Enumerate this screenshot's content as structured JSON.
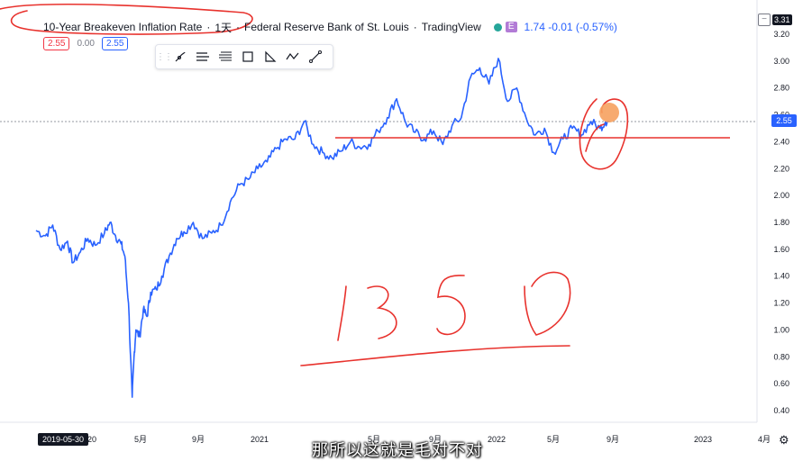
{
  "legend": {
    "symbol_title": "10-Year Breakeven Inflation Rate",
    "interval": "1天",
    "source": "Federal Reserve Bank of St. Louis",
    "provider": "TradingView",
    "e_badge": "E",
    "value_change": "1.74 -0.01 (-0.57%)"
  },
  "ohlc_badges": [
    "2.55",
    "0.00",
    "2.55"
  ],
  "top_right_value": "3.31",
  "current_price_label": "2.55",
  "crosshair_date": "2019-05-30",
  "subtitle": "那所以这就是毛对不对",
  "toolbar_tools": [
    "brush-icon",
    "channel-icon",
    "fib-icon",
    "rectangle-icon",
    "triangle-icon",
    "path-icon",
    "trendline-icon"
  ],
  "handwritten_annotation": "1350",
  "chart_data": {
    "type": "line",
    "title": "10-Year Breakeven Inflation Rate",
    "y_tick_labels": [
      "0.40",
      "0.60",
      "0.80",
      "1.00",
      "1.20",
      "1.40",
      "1.60",
      "1.80",
      "2.00",
      "2.20",
      "2.40",
      "2.60",
      "2.80",
      "3.00",
      "3.20"
    ],
    "x_tick_labels": [
      "",
      "2020",
      "5月",
      "9月",
      "2021",
      "5月",
      "9月",
      "2022",
      "5月",
      "9月",
      "2023",
      "4月"
    ],
    "ylim": [
      0.35,
      3.25
    ],
    "grid": false,
    "horizontal_line": 2.42,
    "series": [
      {
        "color": "#2962ff",
        "x": [
          0.0,
          0.05,
          0.09,
          0.13,
          0.17,
          0.2,
          0.24,
          0.28,
          0.32,
          0.37,
          0.4,
          0.43,
          0.46,
          0.48,
          0.5,
          0.52,
          0.53,
          0.54,
          0.56,
          0.58,
          0.6,
          0.62,
          0.65,
          0.68,
          0.72,
          0.76,
          0.8,
          0.85,
          0.9,
          0.95,
          1.0,
          1.05,
          1.1,
          1.15,
          1.2,
          1.25,
          1.3,
          1.35,
          1.4,
          1.45,
          1.5,
          1.55,
          1.6,
          1.65,
          1.7,
          1.75,
          1.8,
          1.85,
          1.9,
          1.95,
          2.0,
          2.05,
          2.1,
          2.15,
          2.2,
          2.25,
          2.3,
          2.35,
          2.4,
          2.45,
          2.5,
          2.55,
          2.6,
          2.65,
          2.7,
          2.75,
          2.8,
          2.85,
          2.9,
          2.95,
          3.0,
          3.05,
          3.08,
          3.1
        ],
        "values": [
          1.74,
          1.7,
          1.78,
          1.6,
          1.66,
          1.5,
          1.58,
          1.68,
          1.63,
          1.72,
          1.8,
          1.7,
          1.64,
          1.55,
          1.2,
          0.5,
          0.8,
          1.0,
          0.95,
          1.15,
          1.1,
          1.28,
          1.3,
          1.4,
          1.55,
          1.68,
          1.73,
          1.8,
          1.68,
          1.72,
          1.78,
          1.95,
          2.08,
          2.12,
          2.2,
          2.25,
          2.35,
          2.42,
          2.42,
          2.55,
          2.38,
          2.32,
          2.28,
          2.33,
          2.4,
          2.36,
          2.38,
          2.48,
          2.58,
          2.72,
          2.54,
          2.47,
          2.42,
          2.48,
          2.38,
          2.52,
          2.58,
          2.88,
          2.95,
          2.83,
          3.02,
          2.7,
          2.8,
          2.58,
          2.45,
          2.5,
          2.32,
          2.42,
          2.5,
          2.45,
          2.55,
          2.5,
          2.55,
          2.55
        ]
      }
    ],
    "x_domain": [
      0,
      3.1
    ]
  }
}
